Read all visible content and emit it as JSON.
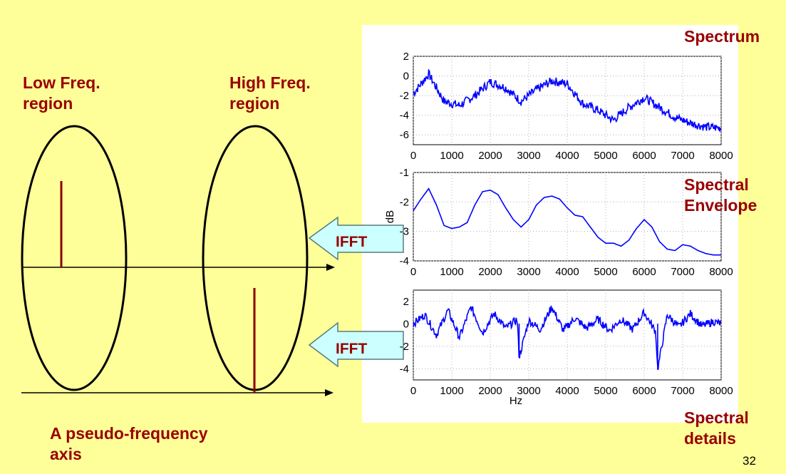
{
  "labels": {
    "low_region": [
      "Low Freq.",
      "region"
    ],
    "high_region": [
      "High Freq.",
      "region"
    ],
    "axis": [
      "A pseudo-frequency",
      "axis"
    ],
    "spectrum": "Spectrum",
    "envelope": [
      "Spectral",
      "Envelope"
    ],
    "details": [
      "Spectral",
      "details"
    ],
    "ifft": "IFFT",
    "page_number": "32"
  },
  "colors": {
    "background": "#ffff99",
    "label": "#990000",
    "plot_line": "#0000ff",
    "arrow_fill": "#ccffff"
  },
  "chart_data": [
    {
      "type": "line",
      "title": "Spectrum",
      "x_range": [
        0,
        8000
      ],
      "ylim": [
        -7,
        2
      ],
      "x_ticks": [
        "0",
        "1000",
        "2000",
        "3000",
        "4000",
        "5000",
        "6000",
        "7000",
        "8000"
      ],
      "y_ticks": [
        "2",
        "0",
        "-2",
        "-4",
        "-6"
      ],
      "grid": true,
      "series": [
        {
          "x": [
            0,
            400,
            800,
            1200,
            1600,
            2000,
            2400,
            2800,
            3200,
            3600,
            4000,
            4400,
            4800,
            5200,
            5600,
            6000,
            6400,
            6800,
            7200,
            7600,
            8000
          ],
          "values": [
            -1.8,
            0.2,
            -2.6,
            -3.0,
            -2.0,
            -0.6,
            -1.2,
            -2.6,
            -1.4,
            -0.5,
            -0.8,
            -2.8,
            -3.5,
            -4.5,
            -3.2,
            -2.2,
            -3.2,
            -4.2,
            -4.8,
            -5.2,
            -5.3
          ]
        }
      ]
    },
    {
      "type": "line",
      "title": "Spectral Envelope",
      "ylabel": "dB",
      "x_range": [
        0,
        8000
      ],
      "ylim": [
        -4,
        -1
      ],
      "x_ticks": [
        "0",
        "1000",
        "2000",
        "3000",
        "4000",
        "5000",
        "6000",
        "7000",
        "8000"
      ],
      "y_ticks": [
        "-1",
        "-2",
        "-3",
        "-4"
      ],
      "grid": true,
      "series": [
        {
          "x": [
            0,
            200,
            400,
            600,
            800,
            1000,
            1200,
            1400,
            1600,
            1800,
            2000,
            2200,
            2400,
            2600,
            2800,
            3000,
            3200,
            3400,
            3600,
            3800,
            4000,
            4200,
            4400,
            4600,
            4800,
            5000,
            5200,
            5400,
            5600,
            5800,
            6000,
            6200,
            6400,
            6600,
            6800,
            7000,
            7200,
            7400,
            7600,
            7800,
            8000
          ],
          "values": [
            -2.3,
            -1.9,
            -1.55,
            -2.1,
            -2.8,
            -2.9,
            -2.85,
            -2.7,
            -2.1,
            -1.65,
            -1.6,
            -1.75,
            -2.2,
            -2.6,
            -2.85,
            -2.6,
            -2.1,
            -1.85,
            -1.8,
            -1.9,
            -2.2,
            -2.45,
            -2.5,
            -2.85,
            -3.2,
            -3.4,
            -3.4,
            -3.5,
            -3.3,
            -2.9,
            -2.6,
            -2.85,
            -3.35,
            -3.6,
            -3.65,
            -3.45,
            -3.5,
            -3.65,
            -3.75,
            -3.8,
            -3.8
          ]
        }
      ]
    },
    {
      "type": "line",
      "title": "Spectral details",
      "xlabel": "Hz",
      "x_range": [
        0,
        8000
      ],
      "ylim": [
        -5,
        3
      ],
      "x_ticks": [
        "0",
        "1000",
        "2000",
        "3000",
        "4000",
        "5000",
        "6000",
        "7000",
        "8000"
      ],
      "y_ticks": [
        "2",
        "0",
        "-2",
        "-4"
      ],
      "grid": true,
      "series": [
        {
          "x": [
            0,
            300,
            600,
            900,
            1200,
            1500,
            1800,
            2100,
            2400,
            2700,
            2750,
            3000,
            3300,
            3600,
            3900,
            4200,
            4500,
            4800,
            5100,
            5400,
            5700,
            6000,
            6300,
            6350,
            6600,
            6900,
            7200,
            7500,
            7800,
            8000
          ],
          "values": [
            0,
            0.8,
            -1.0,
            1.2,
            -1.2,
            1.5,
            -0.8,
            0.9,
            -0.4,
            0.4,
            -3.0,
            0.3,
            -0.5,
            1.5,
            -0.6,
            0.5,
            -0.4,
            0.4,
            -0.6,
            0.4,
            -0.5,
            1.0,
            -0.7,
            -4.1,
            0.8,
            -0.3,
            0.9,
            -0.2,
            0.2,
            0.0
          ]
        }
      ]
    }
  ]
}
